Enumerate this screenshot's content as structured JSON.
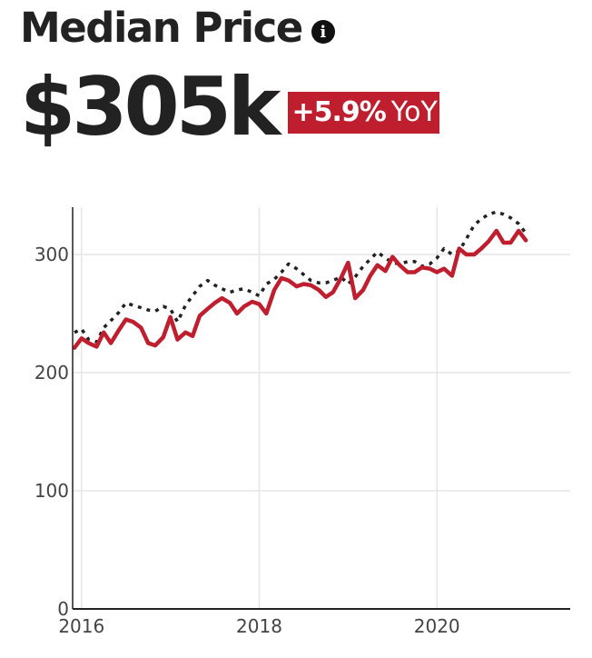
{
  "header": {
    "title": "Median Price",
    "info_icon": "info-icon",
    "value": "$305k",
    "change": "+5.9%",
    "change_suffix": "YoY"
  },
  "colors": {
    "primary_series": "#be1e2d",
    "comparison_series": "#222222",
    "badge_bg": "#be1e2d",
    "grid": "#e6e6e6",
    "axis": "#222222"
  },
  "chart_data": {
    "type": "line",
    "title": "",
    "xlabel": "",
    "ylabel": "",
    "xlim": [
      2015.9,
      2021.5
    ],
    "ylim": [
      0,
      340
    ],
    "grid": true,
    "x_ticks": [
      {
        "value": 2016,
        "label": "2016"
      },
      {
        "value": 2018,
        "label": "2018"
      },
      {
        "value": 2020,
        "label": "2020"
      }
    ],
    "y_ticks": [
      {
        "value": 0,
        "label": "0"
      },
      {
        "value": 100,
        "label": "100"
      },
      {
        "value": 200,
        "label": "200"
      },
      {
        "value": 300,
        "label": "300"
      }
    ],
    "series": [
      {
        "style": "solid",
        "x": [
          2015.92,
          2016.0,
          2016.08,
          2016.17,
          2016.25,
          2016.33,
          2016.42,
          2016.5,
          2016.58,
          2016.67,
          2016.75,
          2016.83,
          2016.92,
          2017.0,
          2017.08,
          2017.17,
          2017.25,
          2017.33,
          2017.42,
          2017.5,
          2017.58,
          2017.67,
          2017.75,
          2017.83,
          2017.92,
          2018.0,
          2018.08,
          2018.17,
          2018.25,
          2018.33,
          2018.42,
          2018.5,
          2018.58,
          2018.67,
          2018.75,
          2018.83,
          2018.92,
          2019.0,
          2019.08,
          2019.17,
          2019.25,
          2019.33,
          2019.42,
          2019.5,
          2019.58,
          2019.67,
          2019.75,
          2019.83,
          2019.92,
          2020.0,
          2020.08,
          2020.17,
          2020.25,
          2020.33,
          2020.42,
          2020.5,
          2020.58,
          2020.67,
          2020.75,
          2020.83,
          2020.92,
          2021.0
        ],
        "values": [
          221,
          229,
          225,
          222,
          234,
          225,
          236,
          245,
          243,
          238,
          225,
          223,
          230,
          247,
          228,
          234,
          231,
          248,
          254,
          259,
          263,
          259,
          250,
          256,
          260,
          258,
          250,
          270,
          280,
          278,
          273,
          275,
          274,
          270,
          264,
          268,
          280,
          293,
          263,
          270,
          282,
          291,
          286,
          298,
          291,
          285,
          285,
          289,
          288,
          285,
          288,
          282,
          305,
          300,
          300,
          305,
          311,
          320,
          310,
          310,
          320,
          312
        ]
      },
      {
        "style": "dotted",
        "x": [
          2015.92,
          2016.0,
          2016.08,
          2016.17,
          2016.25,
          2016.33,
          2016.42,
          2016.5,
          2016.58,
          2016.67,
          2016.75,
          2016.83,
          2016.92,
          2017.0,
          2017.08,
          2017.17,
          2017.25,
          2017.33,
          2017.42,
          2017.5,
          2017.58,
          2017.67,
          2017.75,
          2017.83,
          2017.92,
          2018.0,
          2018.08,
          2018.17,
          2018.25,
          2018.33,
          2018.42,
          2018.5,
          2018.58,
          2018.67,
          2018.75,
          2018.83,
          2018.92,
          2019.0,
          2019.08,
          2019.17,
          2019.25,
          2019.33,
          2019.42,
          2019.5,
          2019.58,
          2019.67,
          2019.75,
          2019.83,
          2019.92,
          2020.0,
          2020.08,
          2020.17,
          2020.25,
          2020.33,
          2020.42,
          2020.5,
          2020.58,
          2020.67,
          2020.75,
          2020.83,
          2020.92,
          2021.0
        ],
        "values": [
          234,
          237,
          228,
          226,
          238,
          244,
          251,
          259,
          257,
          255,
          253,
          252,
          256,
          254,
          243,
          257,
          265,
          273,
          278,
          274,
          271,
          268,
          270,
          271,
          268,
          265,
          275,
          279,
          285,
          292,
          288,
          283,
          278,
          276,
          276,
          278,
          281,
          275,
          281,
          290,
          296,
          302,
          297,
          293,
          292,
          294,
          294,
          290,
          292,
          297,
          305,
          300,
          303,
          313,
          325,
          330,
          334,
          336,
          334,
          331,
          326,
          318
        ]
      }
    ]
  }
}
